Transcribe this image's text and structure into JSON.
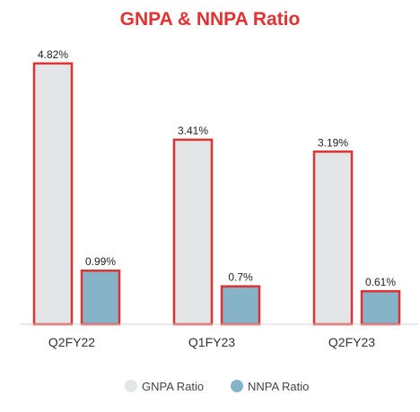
{
  "chart_data": {
    "type": "bar",
    "title": "GNPA & NNPA Ratio",
    "xlabel": "",
    "ylabel": "",
    "categories": [
      "Q2FY22",
      "Q1FY23",
      "Q2FY23"
    ],
    "series": [
      {
        "name": "GNPA Ratio",
        "values": [
          4.82,
          3.41,
          3.19
        ],
        "labels": [
          "4.82%",
          "3.41%",
          "3.19%"
        ],
        "fill_color": "#e3e6e6",
        "border_color": "#e03232"
      },
      {
        "name": "NNPA Ratio",
        "values": [
          0.99,
          0.7,
          0.61
        ],
        "labels": [
          "0.99%",
          "0.7%",
          "0.61%"
        ],
        "fill_color": "#86b3c7",
        "border_color": "#e03232"
      }
    ],
    "ylim": [
      0,
      4.9
    ],
    "grid": false,
    "legend_position": "bottom-center",
    "title_color": "#e03232"
  }
}
